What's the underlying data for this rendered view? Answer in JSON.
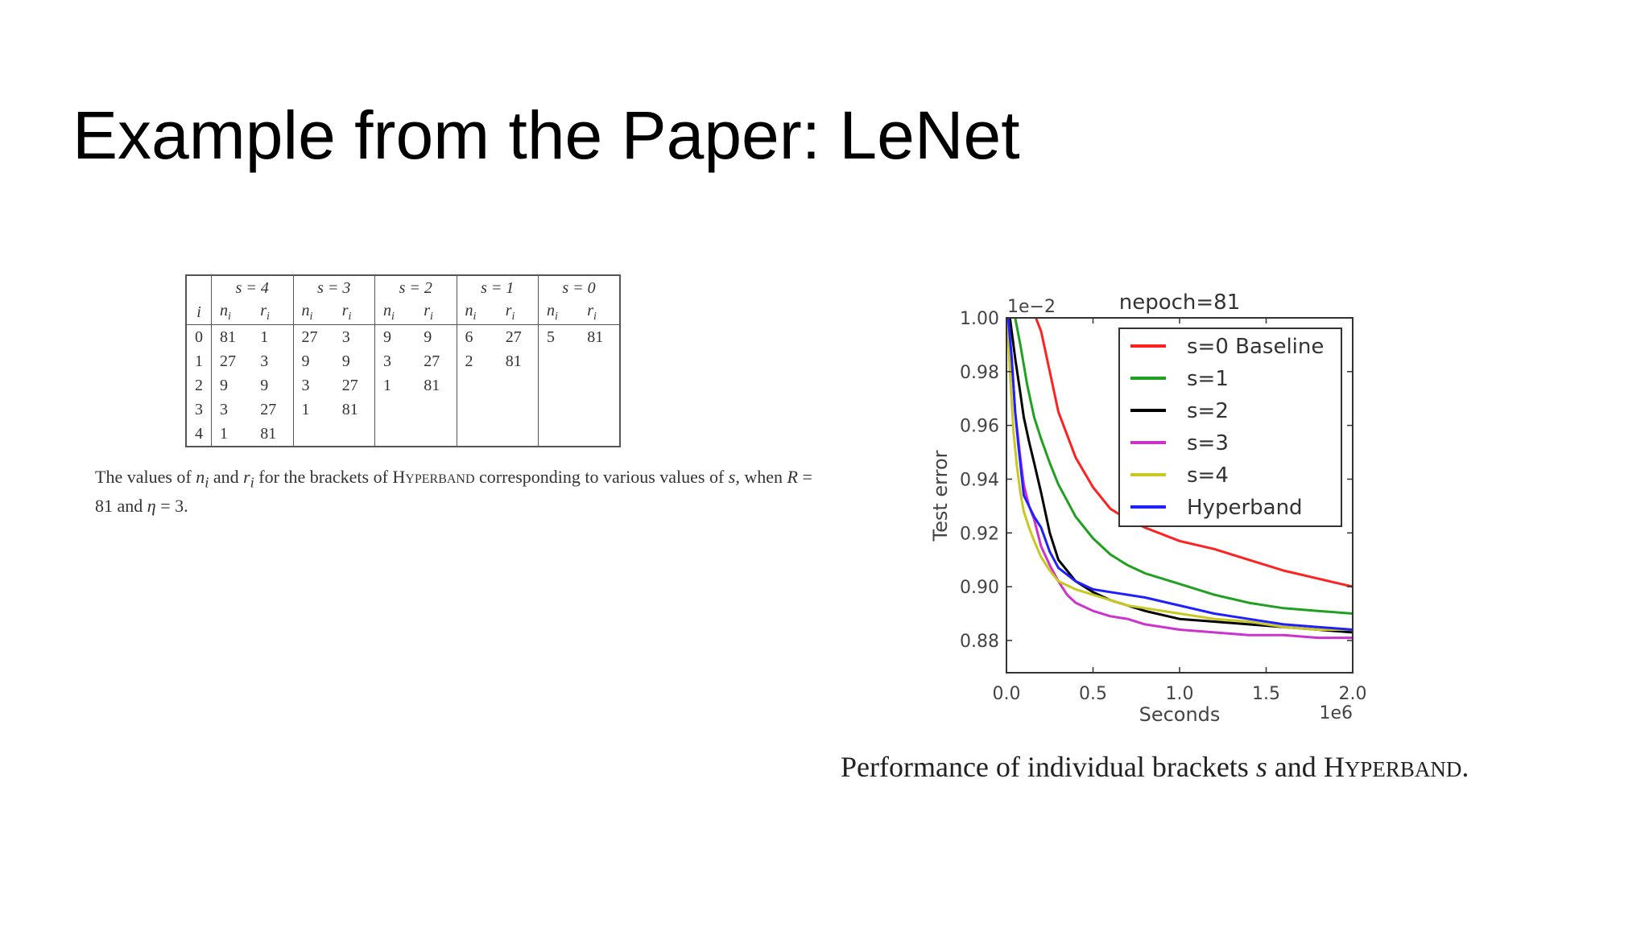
{
  "slide": {
    "title": "Example from the Paper: LeNet"
  },
  "table": {
    "header_i": "i",
    "brackets": [
      "s = 4",
      "s = 3",
      "s = 2",
      "s = 1",
      "s = 0"
    ],
    "sub_n": "n",
    "sub_r": "r",
    "sub_index": "i",
    "rows": [
      [
        "0",
        "81",
        "1",
        "27",
        "3",
        "9",
        "9",
        "6",
        "27",
        "5",
        "81"
      ],
      [
        "1",
        "27",
        "3",
        "9",
        "9",
        "3",
        "27",
        "2",
        "81",
        "",
        ""
      ],
      [
        "2",
        "9",
        "9",
        "3",
        "27",
        "1",
        "81",
        "",
        "",
        "",
        ""
      ],
      [
        "3",
        "3",
        "27",
        "1",
        "81",
        "",
        "",
        "",
        "",
        "",
        ""
      ],
      [
        "4",
        "1",
        "81",
        "",
        "",
        "",
        "",
        "",
        "",
        "",
        ""
      ]
    ],
    "caption": {
      "t1": "The values of ",
      "v_n": "n",
      "v_i1": "i",
      "t2": " and ",
      "v_r": "r",
      "v_i2": "i",
      "t3": " for the brackets of ",
      "hyper_first": "H",
      "hyper_rest": "YPERBAND",
      "t4": " corresponding to various values of ",
      "v_s": "s",
      "t5": ", when ",
      "v_R": "R",
      "t6": " = 81 and ",
      "v_eta": "η",
      "t7": " = 3."
    }
  },
  "chart_data": {
    "type": "line",
    "title": "nepoch=81",
    "xlabel": "Seconds",
    "ylabel": "Test error",
    "x_offset_text": "1e6",
    "y_offset_text": "1e−2",
    "xlim": [
      0,
      2.0
    ],
    "ylim": [
      0.868,
      1.0
    ],
    "x_ticks": [
      0.0,
      0.5,
      1.0,
      1.5,
      2.0
    ],
    "x_tick_labels": [
      "0.0",
      "0.5",
      "1.0",
      "1.5",
      "2.0"
    ],
    "y_ticks": [
      0.88,
      0.9,
      0.92,
      0.94,
      0.96,
      0.98,
      1.0
    ],
    "y_tick_labels": [
      "0.88",
      "0.90",
      "0.92",
      "0.94",
      "0.96",
      "0.98",
      "1.00"
    ],
    "grid": false,
    "legend_position": "top-right",
    "series": [
      {
        "name": "s=0 Baseline",
        "color": "#ff2020",
        "x": [
          0.17,
          0.2,
          0.25,
          0.3,
          0.4,
          0.5,
          0.6,
          0.7,
          0.8,
          1.0,
          1.2,
          1.4,
          1.6,
          1.8,
          2.0
        ],
        "y": [
          1.0,
          0.995,
          0.98,
          0.965,
          0.948,
          0.937,
          0.929,
          0.925,
          0.922,
          0.917,
          0.914,
          0.91,
          0.906,
          0.903,
          0.9
        ]
      },
      {
        "name": "s=1",
        "color": "#20a020",
        "x": [
          0.05,
          0.08,
          0.12,
          0.16,
          0.2,
          0.25,
          0.3,
          0.4,
          0.5,
          0.6,
          0.7,
          0.8,
          1.0,
          1.2,
          1.4,
          1.6,
          1.8,
          2.0
        ],
        "y": [
          1.0,
          0.99,
          0.975,
          0.963,
          0.955,
          0.946,
          0.938,
          0.926,
          0.918,
          0.912,
          0.908,
          0.905,
          0.901,
          0.897,
          0.894,
          0.892,
          0.891,
          0.89
        ]
      },
      {
        "name": "s=2",
        "color": "#000000",
        "x": [
          0.02,
          0.05,
          0.08,
          0.1,
          0.13,
          0.16,
          0.2,
          0.25,
          0.3,
          0.4,
          0.5,
          0.6,
          0.7,
          0.8,
          1.0,
          1.2,
          1.4,
          1.6,
          1.8,
          2.0
        ],
        "y": [
          1.0,
          0.985,
          0.972,
          0.963,
          0.954,
          0.946,
          0.935,
          0.92,
          0.91,
          0.902,
          0.898,
          0.895,
          0.893,
          0.891,
          0.888,
          0.887,
          0.886,
          0.885,
          0.884,
          0.883
        ]
      },
      {
        "name": "s=3",
        "color": "#cc33cc",
        "x": [
          0.01,
          0.03,
          0.05,
          0.08,
          0.1,
          0.13,
          0.16,
          0.2,
          0.25,
          0.3,
          0.35,
          0.4,
          0.5,
          0.6,
          0.7,
          0.8,
          1.0,
          1.2,
          1.4,
          1.6,
          1.8,
          2.0
        ],
        "y": [
          1.0,
          0.985,
          0.965,
          0.948,
          0.938,
          0.93,
          0.925,
          0.915,
          0.908,
          0.902,
          0.897,
          0.894,
          0.891,
          0.889,
          0.888,
          0.886,
          0.884,
          0.883,
          0.882,
          0.882,
          0.881,
          0.881
        ]
      },
      {
        "name": "s=4",
        "color": "#c8c820",
        "x": [
          0.005,
          0.02,
          0.04,
          0.06,
          0.08,
          0.1,
          0.13,
          0.16,
          0.2,
          0.25,
          0.3,
          0.4,
          0.5,
          0.6,
          0.7,
          0.8,
          1.0,
          1.2,
          1.4,
          1.6,
          1.8,
          2.0
        ],
        "y": [
          1.0,
          0.98,
          0.958,
          0.945,
          0.935,
          0.928,
          0.922,
          0.917,
          0.911,
          0.906,
          0.902,
          0.899,
          0.897,
          0.895,
          0.893,
          0.892,
          0.89,
          0.888,
          0.887,
          0.885,
          0.884,
          0.884
        ]
      },
      {
        "name": "Hyperband",
        "color": "#2020ff",
        "x": [
          0.01,
          0.03,
          0.05,
          0.07,
          0.09,
          0.1,
          0.13,
          0.16,
          0.2,
          0.25,
          0.3,
          0.4,
          0.5,
          0.6,
          0.7,
          0.8,
          1.0,
          1.2,
          1.4,
          1.6,
          1.8,
          2.0
        ],
        "y": [
          1.0,
          0.985,
          0.965,
          0.952,
          0.94,
          0.934,
          0.93,
          0.926,
          0.922,
          0.913,
          0.907,
          0.902,
          0.899,
          0.898,
          0.897,
          0.896,
          0.893,
          0.89,
          0.888,
          0.886,
          0.885,
          0.884
        ]
      }
    ]
  },
  "figure_caption": {
    "t1": "Performance of individual brackets ",
    "v_s": "s",
    "t2": " and ",
    "hyper_first": "H",
    "hyper_rest": "YPERBAND",
    "t3": "."
  }
}
